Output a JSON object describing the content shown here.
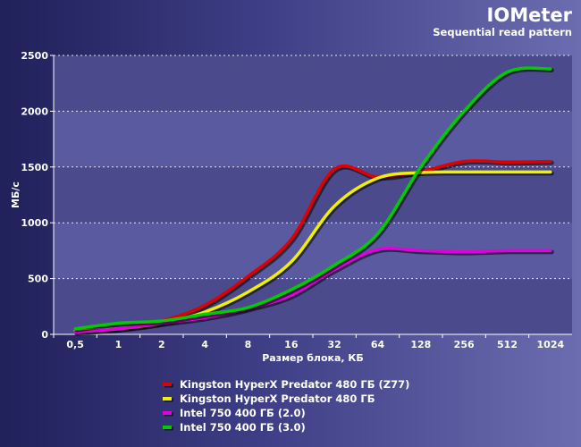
{
  "chart_data": {
    "type": "line",
    "title": "IOMeter",
    "subtitle": "Sequential read pattern",
    "xlabel": "Размер блока, КБ",
    "ylabel": "МБ/с",
    "x": [
      "0,5",
      "1",
      "2",
      "4",
      "8",
      "16",
      "32",
      "64",
      "128",
      "256",
      "512",
      "1024"
    ],
    "ylim": [
      0,
      2500
    ],
    "yticks": [
      0,
      500,
      1000,
      1500,
      2000,
      2500
    ],
    "grid": true,
    "legend_position": "bottom",
    "series": [
      {
        "name": "Kingston HyperX Predator 480 ГБ (Z77)",
        "color": "#e00000",
        "values": [
          30,
          50,
          120,
          260,
          520,
          850,
          1480,
          1410,
          1460,
          1550,
          1545,
          1550
        ]
      },
      {
        "name": "Kingston HyperX Predator 480 ГБ",
        "color": "#f0f000",
        "values": [
          30,
          50,
          100,
          200,
          380,
          650,
          1150,
          1400,
          1450,
          1455,
          1455,
          1455
        ]
      },
      {
        "name": "Intel 750 400 ГБ (2.0)",
        "color": "#e000e0",
        "values": [
          20,
          50,
          100,
          150,
          230,
          350,
          580,
          760,
          750,
          740,
          750,
          750
        ]
      },
      {
        "name": "Intel 750 400 ГБ (3.0)",
        "color": "#00cc00",
        "values": [
          50,
          100,
          120,
          180,
          240,
          400,
          620,
          900,
          1500,
          2000,
          2350,
          2380
        ]
      }
    ]
  }
}
